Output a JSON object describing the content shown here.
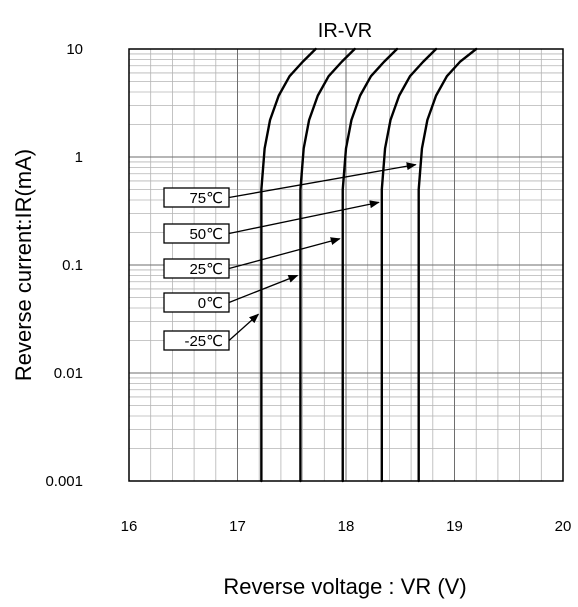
{
  "chart_data": {
    "type": "line",
    "title": "IR-VR",
    "xlabel": "Reverse voltage : VR (V)",
    "ylabel": "Reverse current:IR(mA)",
    "xlim": [
      16,
      20
    ],
    "ylim": [
      0.001,
      10
    ],
    "yscale": "log",
    "grid": true,
    "x_ticks": [
      16,
      17,
      18,
      19,
      20
    ],
    "x_tick_labels": [
      "16",
      "17",
      "18",
      "19",
      "20"
    ],
    "y_ticks": [
      0.001,
      0.01,
      0.1,
      1,
      10
    ],
    "y_tick_labels": [
      "0.001",
      "0.01",
      "0.1",
      "1",
      "10"
    ],
    "series": [
      {
        "name": "-25℃",
        "points": [
          [
            17.22,
            0.001
          ],
          [
            17.22,
            0.5
          ],
          [
            17.25,
            1.2
          ],
          [
            17.3,
            2.2
          ],
          [
            17.38,
            3.7
          ],
          [
            17.48,
            5.6
          ],
          [
            17.6,
            7.6
          ],
          [
            17.72,
            10
          ]
        ]
      },
      {
        "name": "0℃",
        "points": [
          [
            17.58,
            0.001
          ],
          [
            17.58,
            0.5
          ],
          [
            17.61,
            1.2
          ],
          [
            17.66,
            2.2
          ],
          [
            17.74,
            3.7
          ],
          [
            17.84,
            5.6
          ],
          [
            17.96,
            7.6
          ],
          [
            18.08,
            10
          ]
        ]
      },
      {
        "name": "25℃",
        "points": [
          [
            17.97,
            0.001
          ],
          [
            17.97,
            0.5
          ],
          [
            18.0,
            1.2
          ],
          [
            18.05,
            2.2
          ],
          [
            18.13,
            3.7
          ],
          [
            18.23,
            5.6
          ],
          [
            18.35,
            7.6
          ],
          [
            18.47,
            10
          ]
        ]
      },
      {
        "name": "50℃",
        "points": [
          [
            18.33,
            0.001
          ],
          [
            18.33,
            0.5
          ],
          [
            18.36,
            1.2
          ],
          [
            18.41,
            2.2
          ],
          [
            18.49,
            3.7
          ],
          [
            18.59,
            5.6
          ],
          [
            18.71,
            7.6
          ],
          [
            18.83,
            10
          ]
        ]
      },
      {
        "name": "75℃",
        "points": [
          [
            18.67,
            0.001
          ],
          [
            18.67,
            0.5
          ],
          [
            18.7,
            1.2
          ],
          [
            18.75,
            2.2
          ],
          [
            18.83,
            3.7
          ],
          [
            18.93,
            5.6
          ],
          [
            19.05,
            7.6
          ],
          [
            19.2,
            10
          ]
        ]
      }
    ],
    "annotations": [
      {
        "text": "75℃",
        "target": [
          18.67,
          0.85
        ]
      },
      {
        "text": "50℃",
        "target": [
          18.33,
          0.38
        ]
      },
      {
        "text": "25℃",
        "target": [
          17.97,
          0.175
        ]
      },
      {
        "text": "0℃",
        "target": [
          17.58,
          0.08
        ]
      },
      {
        "text": "-25℃",
        "target": [
          17.22,
          0.035
        ]
      }
    ]
  }
}
